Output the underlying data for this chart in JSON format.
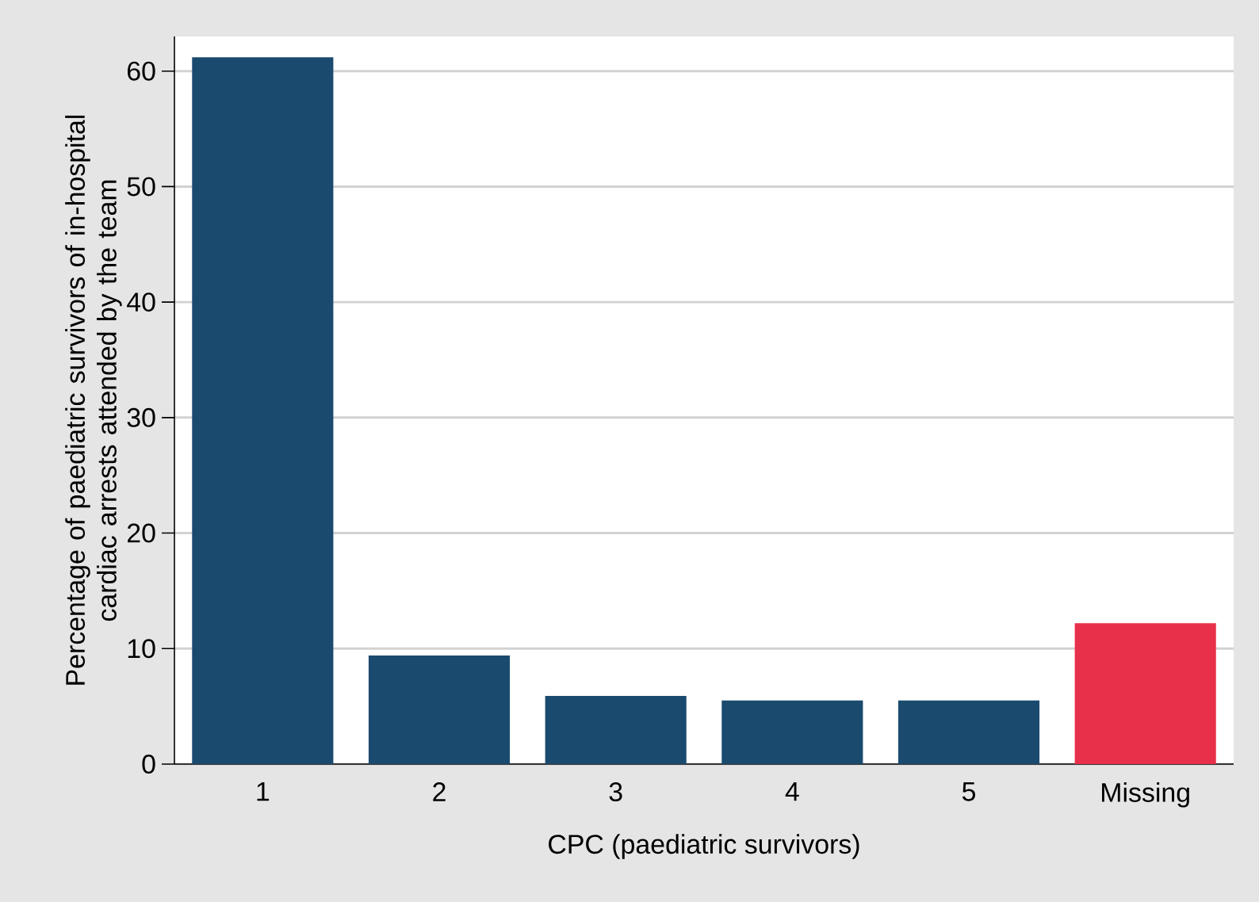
{
  "chart_data": {
    "type": "bar",
    "xlabel": "CPC (paediatric survivors)",
    "ylabel": "Percentage of paediatric survivors of in-hospital cardiac arrests attended by the team",
    "categories": [
      "1",
      "2",
      "3",
      "4",
      "5",
      "Missing"
    ],
    "values": [
      61.2,
      9.4,
      5.9,
      5.5,
      5.5,
      12.2
    ],
    "colors": [
      "#1b4a6f",
      "#1b4a6f",
      "#1b4a6f",
      "#1b4a6f",
      "#1b4a6f",
      "#e8304b"
    ],
    "ylim": [
      0,
      63
    ],
    "yticks": [
      0,
      10,
      20,
      30,
      40,
      50,
      60
    ],
    "grid": "y"
  }
}
